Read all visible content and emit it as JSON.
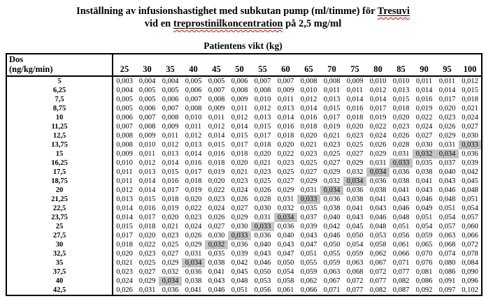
{
  "page": {
    "title_line1_prefix": "Inställning av infusionshastighet med subkutan pump (ml/timme) för ",
    "title_line1_brand": "Tresuvi",
    "title_line2_prefix": "vid en ",
    "title_line2_term": "treprostinilkoncentration",
    "title_line2_suffix": " på 2,5 mg/ml",
    "weight_axis_title": "Patientens vikt (kg)"
  },
  "colors": {
    "highlight": "#c4c4c4",
    "spellcheck_red": "#e00000"
  },
  "table": {
    "dose_header_line1": "Dos",
    "dose_header_line2_flagged": "(ng",
    "dose_header_line2_rest": "/kg/min)",
    "weights": [
      "25",
      "30",
      "35",
      "40",
      "45",
      "50",
      "55",
      "60",
      "65",
      "70",
      "75",
      "80",
      "85",
      "90",
      "95",
      "100"
    ],
    "rows": [
      {
        "dose": "5",
        "values": [
          "0,003",
          "0,004",
          "0,004",
          "0,005",
          "0,005",
          "0,006",
          "0,007",
          "0,007",
          "0,008",
          "0,008",
          "0,009",
          "0,010",
          "0,010",
          "0,011",
          "0,011",
          "0,012"
        ],
        "hl": []
      },
      {
        "dose": "6,25",
        "values": [
          "0,004",
          "0,005",
          "0,005",
          "0,006",
          "0,007",
          "0,008",
          "0,008",
          "0,009",
          "0,010",
          "0,011",
          "0,011",
          "0,012",
          "0,013",
          "0,014",
          "0,014",
          "0,015"
        ],
        "hl": []
      },
      {
        "dose": "7,5",
        "values": [
          "0,005",
          "0,005",
          "0,006",
          "0,007",
          "0,008",
          "0,009",
          "0,010",
          "0,011",
          "0,012",
          "0,013",
          "0,014",
          "0,014",
          "0,015",
          "0,016",
          "0,017",
          "0,018"
        ],
        "hl": []
      },
      {
        "dose": "8,75",
        "values": [
          "0,005",
          "0,006",
          "0,007",
          "0,008",
          "0,009",
          "0,011",
          "0,012",
          "0,013",
          "0,014",
          "0,015",
          "0,016",
          "0,017",
          "0,018",
          "0,019",
          "0,020",
          "0,021"
        ],
        "hl": []
      },
      {
        "dose": "10",
        "values": [
          "0,006",
          "0,007",
          "0,008",
          "0,010",
          "0,011",
          "0,012",
          "0,013",
          "0,014",
          "0,016",
          "0,017",
          "0,018",
          "0,019",
          "0,020",
          "0,022",
          "0,023",
          "0,024"
        ],
        "hl": []
      },
      {
        "dose": "11,25",
        "values": [
          "0,007",
          "0,008",
          "0,009",
          "0,011",
          "0,012",
          "0,014",
          "0,015",
          "0,016",
          "0,018",
          "0,019",
          "0,020",
          "0,022",
          "0,023",
          "0,024",
          "0,026",
          "0,027"
        ],
        "hl": []
      },
      {
        "dose": "12,5",
        "values": [
          "0,008",
          "0,009",
          "0,011",
          "0,012",
          "0,014",
          "0,015",
          "0,017",
          "0,018",
          "0,020",
          "0,021",
          "0,023",
          "0,024",
          "0,026",
          "0,027",
          "0,029",
          "0,030"
        ],
        "hl": []
      },
      {
        "dose": "13,75",
        "values": [
          "0,008",
          "0,010",
          "0,012",
          "0,013",
          "0,015",
          "0,017",
          "0,018",
          "0,020",
          "0,021",
          "0,023",
          "0,025",
          "0,026",
          "0,028",
          "0,030",
          "0,031",
          "0,033"
        ],
        "hl": [
          15
        ]
      },
      {
        "dose": "15",
        "values": [
          "0,009",
          "0,011",
          "0,013",
          "0,014",
          "0,016",
          "0,018",
          "0,020",
          "0,022",
          "0,023",
          "0,025",
          "0,027",
          "0,029",
          "0,031",
          "0,032",
          "0,034",
          "0,036"
        ],
        "hl": [
          13,
          14
        ]
      },
      {
        "dose": "16,25",
        "values": [
          "0,010",
          "0,012",
          "0,014",
          "0,016",
          "0,018",
          "0,020",
          "0,021",
          "0,023",
          "0,025",
          "0,027",
          "0,029",
          "0,031",
          "0,033",
          "0,035",
          "0,037",
          "0,039"
        ],
        "hl": [
          12
        ]
      },
      {
        "dose": "17,5",
        "values": [
          "0,011",
          "0,013",
          "0,015",
          "0,017",
          "0,019",
          "0,021",
          "0,023",
          "0,025",
          "0,027",
          "0,029",
          "0,032",
          "0,034",
          "0,036",
          "0,038",
          "0,040",
          "0,042"
        ],
        "hl": [
          11
        ]
      },
      {
        "dose": "18,75",
        "values": [
          "0,011",
          "0,014",
          "0,016",
          "0,018",
          "0,020",
          "0,023",
          "0,025",
          "0,027",
          "0,029",
          "0,032",
          "0,034",
          "0,036",
          "0,038",
          "0,041",
          "0,043",
          "0,045"
        ],
        "hl": [
          10
        ]
      },
      {
        "dose": "20",
        "values": [
          "0,012",
          "0,014",
          "0,017",
          "0,019",
          "0,022",
          "0,024",
          "0,026",
          "0,029",
          "0,031",
          "0,034",
          "0,036",
          "0,038",
          "0,041",
          "0,043",
          "0,046",
          "0,048"
        ],
        "hl": [
          9
        ]
      },
      {
        "dose": "21,25",
        "values": [
          "0,013",
          "0,015",
          "0,018",
          "0,020",
          "0,023",
          "0,026",
          "0,028",
          "0,031",
          "0,033",
          "0,036",
          "0,038",
          "0,041",
          "0,043",
          "0,046",
          "0,048",
          "0,051"
        ],
        "hl": [
          8
        ]
      },
      {
        "dose": "22,5",
        "values": [
          "0,014",
          "0,016",
          "0,019",
          "0,022",
          "0,024",
          "0,027",
          "0,030",
          "0,032",
          "0,035",
          "0,038",
          "0,041",
          "0,043",
          "0,046",
          "0,049",
          "0,051",
          "0,054"
        ],
        "hl": []
      },
      {
        "dose": "23,75",
        "values": [
          "0,014",
          "0,017",
          "0,020",
          "0,023",
          "0,026",
          "0,029",
          "0,031",
          "0,034",
          "0,037",
          "0,040",
          "0,043",
          "0,046",
          "0,048",
          "0,051",
          "0,054",
          "0,057"
        ],
        "hl": [
          7
        ]
      },
      {
        "dose": "25",
        "values": [
          "0,015",
          "0,018",
          "0,021",
          "0,024",
          "0,027",
          "0,030",
          "0,033",
          "0,036",
          "0,039",
          "0,042",
          "0,045",
          "0,048",
          "0,051",
          "0,054",
          "0,057",
          "0,060"
        ],
        "hl": [
          6
        ]
      },
      {
        "dose": "27,5",
        "values": [
          "0,017",
          "0,020",
          "0,023",
          "0,026",
          "0,030",
          "0,033",
          "0,036",
          "0,040",
          "0,043",
          "0,046",
          "0,050",
          "0,053",
          "0,056",
          "0,059",
          "0,063",
          "0,066"
        ],
        "hl": [
          5
        ]
      },
      {
        "dose": "30",
        "values": [
          "0,018",
          "0,022",
          "0,025",
          "0,029",
          "0,032",
          "0,036",
          "0,040",
          "0,043",
          "0,047",
          "0,050",
          "0,054",
          "0,058",
          "0,061",
          "0,065",
          "0,068",
          "0,072"
        ],
        "hl": [
          4
        ]
      },
      {
        "dose": "32,5",
        "values": [
          "0,020",
          "0,023",
          "0,027",
          "0,031",
          "0,035",
          "0,039",
          "0,043",
          "0,047",
          "0,051",
          "0,055",
          "0,059",
          "0,062",
          "0,066",
          "0,070",
          "0,074",
          "0,078"
        ],
        "hl": []
      },
      {
        "dose": "35",
        "values": [
          "0,021",
          "0,025",
          "0,029",
          "0,034",
          "0,038",
          "0,042",
          "0,046",
          "0,050",
          "0,055",
          "0,059",
          "0,063",
          "0,067",
          "0,071",
          "0,076",
          "0,080",
          "0,084"
        ],
        "hl": [
          3
        ]
      },
      {
        "dose": "37,5",
        "values": [
          "0,023",
          "0,027",
          "0,032",
          "0,036",
          "0,041",
          "0,045",
          "0,050",
          "0,054",
          "0,059",
          "0,063",
          "0,068",
          "0,072",
          "0,077",
          "0,081",
          "0,086",
          "0,090"
        ],
        "hl": []
      },
      {
        "dose": "40",
        "values": [
          "0,024",
          "0,029",
          "0,034",
          "0,038",
          "0,043",
          "0,048",
          "0,053",
          "0,058",
          "0,062",
          "0,067",
          "0,072",
          "0,077",
          "0,082",
          "0,086",
          "0,091",
          "0,096"
        ],
        "hl": [
          2
        ]
      },
      {
        "dose": "42,5",
        "values": [
          "0,026",
          "0,031",
          "0,036",
          "0,041",
          "0,046",
          "0,051",
          "0,056",
          "0,061",
          "0,066",
          "0,071",
          "0,077",
          "0,082",
          "0,087",
          "0,092",
          "0,097",
          "0,102"
        ],
        "hl": []
      }
    ]
  }
}
